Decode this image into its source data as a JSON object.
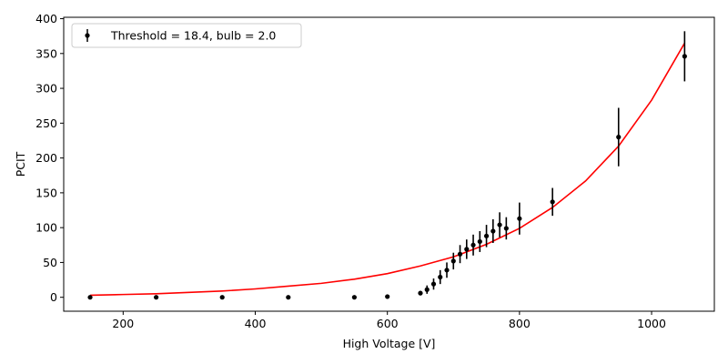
{
  "chart_data": {
    "type": "scatter",
    "xlabel": "High Voltage [V]",
    "ylabel": "PCIT",
    "xlim": [
      110,
      1095
    ],
    "ylim": [
      -20,
      402
    ],
    "xticks": [
      200,
      400,
      600,
      800,
      1000
    ],
    "yticks": [
      0,
      50,
      100,
      150,
      200,
      250,
      300,
      350,
      400
    ],
    "legend": {
      "position": "top-left",
      "label": "Threshold = 18.4, bulb = 2.0"
    },
    "series": [
      {
        "name": "Threshold = 18.4, bulb = 2.0",
        "type": "errorbar",
        "color": "#000000",
        "x": [
          150,
          250,
          350,
          450,
          550,
          600,
          650,
          660,
          670,
          680,
          690,
          700,
          710,
          720,
          730,
          740,
          750,
          760,
          770,
          780,
          800,
          850,
          950,
          1050
        ],
        "y": [
          0,
          0,
          0,
          0,
          0,
          1,
          6,
          11,
          19,
          29,
          39,
          52,
          62,
          69,
          75,
          80,
          88,
          95,
          104,
          99,
          113,
          137,
          230,
          346
        ],
        "err": [
          0,
          0,
          0,
          0,
          0,
          0,
          3,
          6,
          8,
          10,
          11,
          12,
          13,
          14,
          15,
          15,
          16,
          17,
          18,
          16,
          23,
          20,
          42,
          36
        ]
      },
      {
        "name": "fit",
        "type": "line",
        "color": "#ff0000",
        "x": [
          150,
          200,
          250,
          300,
          350,
          400,
          450,
          500,
          550,
          600,
          650,
          700,
          750,
          800,
          850,
          900,
          950,
          1000,
          1050
        ],
        "y": [
          3,
          4,
          5,
          7,
          9,
          12,
          16,
          20,
          26,
          34,
          45,
          58,
          76,
          99,
          129,
          167,
          217,
          283,
          365
        ]
      }
    ]
  }
}
